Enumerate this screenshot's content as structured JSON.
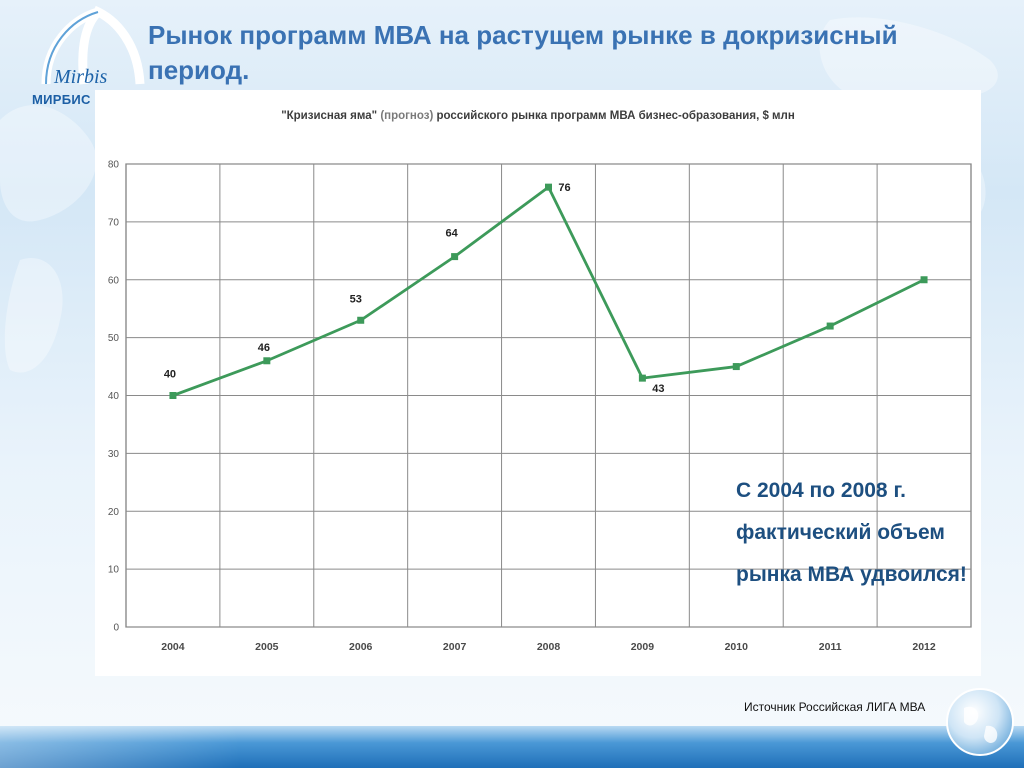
{
  "slide": {
    "title": "Рынок программ МВА на растущем рынке в докризисный период.",
    "logo_script": "Mirbis",
    "logo_text": "МИРБИС",
    "note": "С 2004 по 2008 г. фактический объем рынка МВА  удвоился!",
    "source": "Источник Российская ЛИГА МВА"
  },
  "chart_data": {
    "type": "line",
    "title_quoted": "\"Кризисная яма\"",
    "title_muted": "(прогноз)",
    "title_rest": "российского рынка программ МВА бизнес-образования, $ млн",
    "categories": [
      "2004",
      "2005",
      "2006",
      "2007",
      "2008",
      "2009",
      "2010",
      "2011",
      "2012"
    ],
    "values": [
      40,
      46,
      53,
      64,
      76,
      43,
      45,
      52,
      60
    ],
    "data_labels": [
      "40",
      "46",
      "53",
      "64",
      "76",
      "43",
      "",
      "",
      ""
    ],
    "yticks": [
      "0",
      "10",
      "20",
      "30",
      "40",
      "50",
      "60",
      "70",
      "80"
    ],
    "ylim": [
      0,
      80
    ],
    "grid": true,
    "line_color": "#3d9a5a"
  },
  "colors": {
    "title": "#3a72b3",
    "note": "#1d4f80",
    "footer": "#1f6fb8"
  }
}
